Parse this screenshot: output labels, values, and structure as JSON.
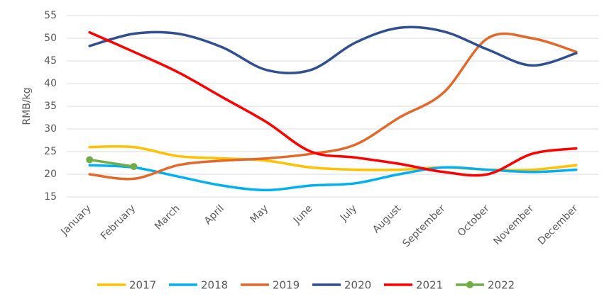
{
  "chart_data": {
    "type": "line",
    "ylabel": "RMB/kg",
    "categories": [
      "January",
      "February",
      "March",
      "April",
      "May",
      "June",
      "July",
      "August",
      "September",
      "October",
      "November",
      "December"
    ],
    "series": [
      {
        "name": "2017",
        "color": "#FFC000",
        "values": [
          26,
          26,
          24,
          23.5,
          23,
          21.5,
          21,
          21,
          21.5,
          21,
          21,
          22
        ]
      },
      {
        "name": "2018",
        "color": "#00B0F0",
        "values": [
          22,
          21.5,
          19.5,
          17.5,
          16.5,
          17.5,
          18,
          20,
          21.5,
          21,
          20.5,
          21
        ]
      },
      {
        "name": "2019",
        "color": "#E2692A",
        "values": [
          20,
          19,
          22,
          23,
          23.5,
          24.5,
          26.5,
          32.5,
          38,
          50,
          50,
          47
        ]
      },
      {
        "name": "2020",
        "color": "#2F4F91",
        "values": [
          48.3,
          51,
          51,
          48,
          43,
          43,
          49,
          52.3,
          51.5,
          47.5,
          44,
          46.7
        ]
      },
      {
        "name": "2021",
        "color": "#FF0000",
        "values": [
          51.3,
          47,
          42.5,
          37,
          31.5,
          25,
          23.7,
          22.3,
          20.5,
          20,
          24.5,
          25.7
        ]
      },
      {
        "name": "2022",
        "color": "#70AD47",
        "markers": true,
        "values": [
          23.2,
          21.7,
          null,
          null,
          null,
          null,
          null,
          null,
          null,
          null,
          null,
          null
        ]
      }
    ],
    "ylim": [
      15,
      55
    ],
    "yticks": [
      15,
      20,
      25,
      30,
      35,
      40,
      45,
      50,
      55
    ],
    "grid": true,
    "legend": "bottom"
  }
}
